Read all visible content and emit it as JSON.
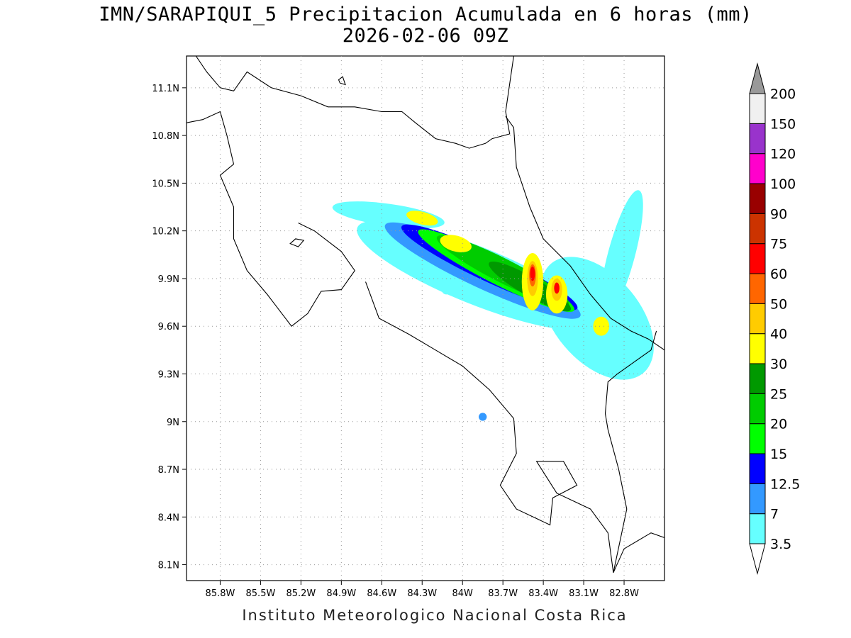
{
  "header": {
    "title_line1": "IMN/SARAPIQUI_5 Precipitacion Acumulada en 6 horas (mm)",
    "title_line2": "2026-02-06 09Z"
  },
  "footer": {
    "credit": "Instituto Meteorologico Nacional Costa Rica"
  },
  "map": {
    "lon_range": [
      -86.05,
      -82.5
    ],
    "lat_range": [
      8.0,
      11.3
    ],
    "lon_ticks": [
      {
        "value": -85.8,
        "label": "85.8W"
      },
      {
        "value": -85.5,
        "label": "85.5W"
      },
      {
        "value": -85.2,
        "label": "85.2W"
      },
      {
        "value": -84.9,
        "label": "84.9W"
      },
      {
        "value": -84.6,
        "label": "84.6W"
      },
      {
        "value": -84.3,
        "label": "84.3W"
      },
      {
        "value": -84.0,
        "label": "84W"
      },
      {
        "value": -83.7,
        "label": "83.7W"
      },
      {
        "value": -83.4,
        "label": "83.4W"
      },
      {
        "value": -83.1,
        "label": "83.1W"
      },
      {
        "value": -82.8,
        "label": "82.8W"
      }
    ],
    "lat_ticks": [
      {
        "value": 11.1,
        "label": "11.1N"
      },
      {
        "value": 10.8,
        "label": "10.8N"
      },
      {
        "value": 10.5,
        "label": "10.5N"
      },
      {
        "value": 10.2,
        "label": "10.2N"
      },
      {
        "value": 9.9,
        "label": "9.9N"
      },
      {
        "value": 9.6,
        "label": "9.6N"
      },
      {
        "value": 9.3,
        "label": "9.3N"
      },
      {
        "value": 9.0,
        "label": "9N"
      },
      {
        "value": 8.7,
        "label": "8.7N"
      },
      {
        "value": 8.4,
        "label": "8.4N"
      },
      {
        "value": 8.1,
        "label": "8.1N"
      }
    ],
    "grid": true,
    "coastlines": [
      [
        [
          -85.98,
          11.3
        ],
        [
          -85.9,
          11.2
        ],
        [
          -85.8,
          11.1
        ],
        [
          -85.7,
          11.08
        ],
        [
          -85.6,
          11.2
        ],
        [
          -85.42,
          11.1
        ],
        [
          -85.2,
          11.05
        ],
        [
          -85.0,
          10.98
        ],
        [
          -84.8,
          10.98
        ],
        [
          -84.6,
          10.95
        ],
        [
          -84.45,
          10.95
        ],
        [
          -84.35,
          10.88
        ],
        [
          -84.2,
          10.78
        ],
        [
          -84.05,
          10.75
        ],
        [
          -83.95,
          10.72
        ],
        [
          -83.83,
          10.75
        ],
        [
          -83.78,
          10.78
        ],
        [
          -83.65,
          10.81
        ],
        [
          -83.68,
          10.95
        ],
        [
          -83.62,
          11.3
        ]
      ],
      [
        [
          -83.68,
          10.92
        ],
        [
          -83.62,
          10.85
        ],
        [
          -83.6,
          10.6
        ],
        [
          -83.5,
          10.35
        ],
        [
          -83.4,
          10.15
        ],
        [
          -83.2,
          9.98
        ],
        [
          -83.05,
          9.8
        ],
        [
          -82.9,
          9.65
        ],
        [
          -82.75,
          9.57
        ],
        [
          -82.62,
          9.52
        ],
        [
          -82.5,
          9.45
        ]
      ],
      [
        [
          -86.05,
          10.88
        ],
        [
          -85.93,
          10.9
        ],
        [
          -85.8,
          10.95
        ],
        [
          -85.75,
          10.8
        ],
        [
          -85.7,
          10.62
        ],
        [
          -85.8,
          10.55
        ],
        [
          -85.7,
          10.35
        ],
        [
          -85.7,
          10.15
        ],
        [
          -85.6,
          9.95
        ],
        [
          -85.45,
          9.8
        ],
        [
          -85.27,
          9.6
        ],
        [
          -85.15,
          9.68
        ],
        [
          -85.05,
          9.82
        ],
        [
          -84.9,
          9.83
        ],
        [
          -84.8,
          9.95
        ],
        [
          -84.9,
          10.07
        ],
        [
          -85.1,
          10.2
        ],
        [
          -85.22,
          10.25
        ]
      ],
      [
        [
          -84.72,
          9.88
        ],
        [
          -84.62,
          9.65
        ],
        [
          -84.4,
          9.55
        ],
        [
          -84.2,
          9.45
        ],
        [
          -84.0,
          9.35
        ],
        [
          -83.8,
          9.2
        ],
        [
          -83.62,
          9.02
        ],
        [
          -83.6,
          8.8
        ],
        [
          -83.72,
          8.6
        ],
        [
          -83.6,
          8.45
        ],
        [
          -83.35,
          8.35
        ],
        [
          -83.33,
          8.52
        ],
        [
          -83.15,
          8.6
        ],
        [
          -83.25,
          8.75
        ],
        [
          -83.45,
          8.75
        ],
        [
          -83.3,
          8.55
        ],
        [
          -83.05,
          8.45
        ],
        [
          -82.92,
          8.3
        ],
        [
          -82.88,
          8.05
        ]
      ],
      [
        [
          -82.88,
          8.05
        ],
        [
          -82.8,
          8.2
        ],
        [
          -82.6,
          8.3
        ],
        [
          -82.5,
          8.27
        ]
      ]
    ],
    "borders": [
      [
        [
          -82.56,
          9.57
        ],
        [
          -82.6,
          9.45
        ],
        [
          -82.85,
          9.3
        ],
        [
          -82.92,
          9.25
        ],
        [
          -82.94,
          9.05
        ],
        [
          -82.92,
          8.95
        ],
        [
          -82.84,
          8.7
        ],
        [
          -82.78,
          8.45
        ],
        [
          -82.88,
          8.05
        ]
      ]
    ],
    "islands": [
      [
        [
          -85.28,
          10.12
        ],
        [
          -85.22,
          10.1
        ],
        [
          -85.18,
          10.14
        ],
        [
          -85.24,
          10.15
        ]
      ],
      [
        [
          -84.92,
          11.15
        ],
        [
          -84.89,
          11.17
        ],
        [
          -84.87,
          11.12
        ],
        [
          -84.91,
          11.13
        ]
      ]
    ],
    "precip_field": [
      {
        "level": 3.5,
        "color": "#66ffff",
        "lon": -83.9,
        "lat": 9.92,
        "rx": 0.95,
        "ry": 0.18,
        "rotate": 22
      },
      {
        "level": 3.5,
        "color": "#66ffff",
        "lon": -84.55,
        "lat": 10.3,
        "rx": 0.42,
        "ry": 0.07,
        "rotate": 8
      },
      {
        "level": 3.5,
        "color": "#66ffff",
        "lon": -83.0,
        "lat": 9.65,
        "rx": 0.32,
        "ry": 0.45,
        "rotate": -40
      },
      {
        "level": 3.5,
        "color": "#66ffff",
        "lon": -82.82,
        "lat": 10.05,
        "rx": 0.1,
        "ry": 0.42,
        "rotate": 15
      },
      {
        "level": 7,
        "color": "#3399ff",
        "lon": -83.85,
        "lat": 9.95,
        "rx": 0.8,
        "ry": 0.11,
        "rotate": 25
      },
      {
        "level": 12.5,
        "color": "#0000ff",
        "lon": -83.8,
        "lat": 9.97,
        "rx": 0.72,
        "ry": 0.09,
        "rotate": 25
      },
      {
        "level": 15,
        "color": "#00ff00",
        "lon": -83.75,
        "lat": 9.95,
        "rx": 0.65,
        "ry": 0.08,
        "rotate": 27
      },
      {
        "level": 20,
        "color": "#00cc00",
        "lon": -83.7,
        "lat": 9.95,
        "rx": 0.55,
        "ry": 0.075,
        "rotate": 27
      },
      {
        "level": 25,
        "color": "#009900",
        "lon": -83.5,
        "lat": 9.85,
        "rx": 0.35,
        "ry": 0.06,
        "rotate": 30
      },
      {
        "level": 30,
        "color": "#ffff00",
        "lon": -83.48,
        "lat": 9.88,
        "rx": 0.08,
        "ry": 0.18,
        "rotate": 0
      },
      {
        "level": 30,
        "color": "#ffff00",
        "lon": -83.3,
        "lat": 9.8,
        "rx": 0.08,
        "ry": 0.12,
        "rotate": 0
      },
      {
        "level": 30,
        "color": "#ffff00",
        "lon": -84.3,
        "lat": 10.28,
        "rx": 0.12,
        "ry": 0.04,
        "rotate": 15
      },
      {
        "level": 30,
        "color": "#ffff00",
        "lon": -84.05,
        "lat": 10.12,
        "rx": 0.12,
        "ry": 0.05,
        "rotate": 15
      },
      {
        "level": 30,
        "color": "#ffff00",
        "lon": -82.97,
        "lat": 9.6,
        "rx": 0.06,
        "ry": 0.06,
        "rotate": 0
      },
      {
        "level": 40,
        "color": "#ffcc00",
        "lon": -83.48,
        "lat": 9.9,
        "rx": 0.04,
        "ry": 0.11,
        "rotate": 0
      },
      {
        "level": 40,
        "color": "#ffcc00",
        "lon": -83.3,
        "lat": 9.83,
        "rx": 0.04,
        "ry": 0.07,
        "rotate": 0
      },
      {
        "level": 50,
        "color": "#ff6600",
        "lon": -83.48,
        "lat": 9.92,
        "rx": 0.025,
        "ry": 0.07,
        "rotate": 0
      },
      {
        "level": 60,
        "color": "#ff0000",
        "lon": -83.48,
        "lat": 9.93,
        "rx": 0.018,
        "ry": 0.045,
        "rotate": 0
      },
      {
        "level": 60,
        "color": "#ff0000",
        "lon": -83.3,
        "lat": 9.84,
        "rx": 0.02,
        "ry": 0.035,
        "rotate": 0
      },
      {
        "level": 3.5,
        "color": "#66ffff",
        "lon": -84.12,
        "lat": 9.83,
        "rx": 0.035,
        "ry": 0.03,
        "rotate": 0
      },
      {
        "level": 7,
        "color": "#3399ff",
        "lon": -83.85,
        "lat": 9.03,
        "rx": 0.03,
        "ry": 0.025,
        "rotate": 0
      }
    ]
  },
  "legend": {
    "levels": [
      {
        "label": "3.5",
        "color": "#66ffff"
      },
      {
        "label": "7",
        "color": "#3399ff"
      },
      {
        "label": "12.5",
        "color": "#0000ff"
      },
      {
        "label": "15",
        "color": "#00ff00"
      },
      {
        "label": "20",
        "color": "#00cc00"
      },
      {
        "label": "25",
        "color": "#009900"
      },
      {
        "label": "30",
        "color": "#ffff00"
      },
      {
        "label": "40",
        "color": "#ffcc00"
      },
      {
        "label": "50",
        "color": "#ff6600"
      },
      {
        "label": "60",
        "color": "#ff0000"
      },
      {
        "label": "75",
        "color": "#cc3300"
      },
      {
        "label": "90",
        "color": "#990000"
      },
      {
        "label": "100",
        "color": "#ff00cc"
      },
      {
        "label": "120",
        "color": "#9933cc"
      },
      {
        "label": "150",
        "color": "#f0f0f0"
      },
      {
        "label": "200",
        "color": "#999999"
      }
    ]
  }
}
